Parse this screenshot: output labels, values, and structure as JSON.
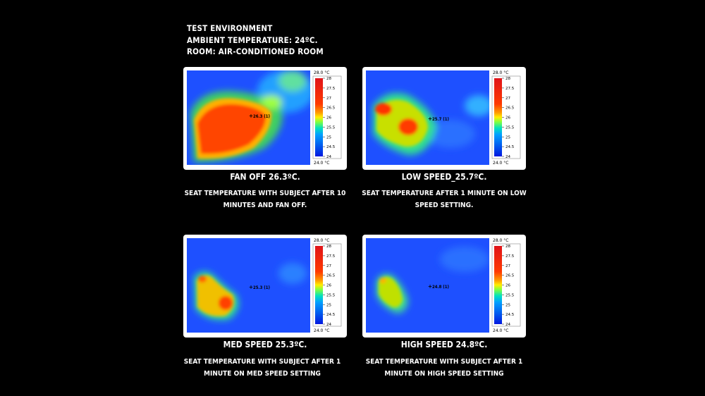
{
  "header": {
    "line1": "TEST ENVIRONMENT",
    "line2": "AMBIENT TEMPERATURE: 24ºC.",
    "line3": "ROOM: AIR-CONDITIONED ROOM"
  },
  "scale": {
    "top_label": "28.0 °C",
    "bottom_label": "24.0 °C",
    "ticks": [
      "28",
      "27.5",
      "27",
      "26.5",
      "26",
      "25.5",
      "25",
      "24.5",
      "24"
    ]
  },
  "panels": [
    {
      "title": "FAN OFF 26.3ºC.",
      "desc_line1": "SEAT TEMPERATURE WITH SUBJECT AFTER 10",
      "desc_line2": "MINUTES AND FAN OFF.",
      "crosshair_label": "26.3 (1)",
      "temperature": 26.3
    },
    {
      "title": "LOW SPEED_25.7ºC.",
      "desc_line1": "SEAT TEMPERATURE AFTER 1 MINUTE ON LOW",
      "desc_line2": "SPEED SETTING.",
      "crosshair_label": "25.7 (1)",
      "temperature": 25.7
    },
    {
      "title": "MED SPEED 25.3ºC.",
      "desc_line1": "SEAT TEMPERATURE WITH SUBJECT AFTER 1",
      "desc_line2": "MINUTE ON MED SPEED SETTING",
      "crosshair_label": "25.3 (1)",
      "temperature": 25.3
    },
    {
      "title": "HIGH SPEED 24.8ºC.",
      "desc_line1": "SEAT TEMPERATURE WITH SUBJECT AFTER 1",
      "desc_line2": "MINUTE ON HIGH SPEED SETTING",
      "crosshair_label": "24.8 (1)",
      "temperature": 24.8
    }
  ],
  "colors": {
    "background": "#000000",
    "text": "#ffffff",
    "panel": "#ffffff",
    "cold": "#1e3cff",
    "hot": "#ff2a00"
  }
}
